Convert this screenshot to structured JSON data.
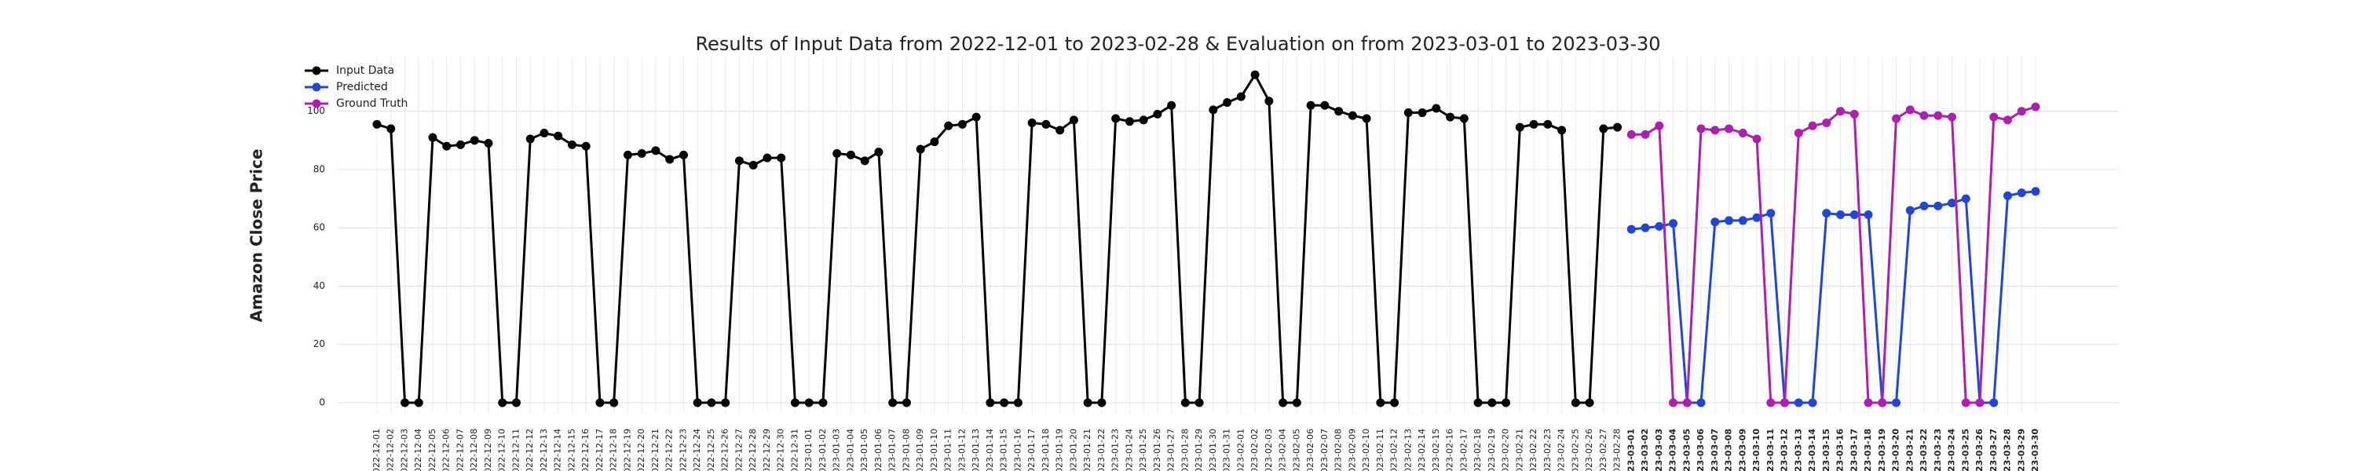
{
  "chart_data": {
    "type": "line",
    "title": "Results of Input Data from 2022-12-01 to 2023-02-28 & Evaluation on from 2023-03-01 to 2023-03-30",
    "ylabel": "Amazon Close Price",
    "categories": [
      "2022-12-01",
      "2022-12-02",
      "2022-12-03",
      "2022-12-04",
      "2022-12-05",
      "2022-12-06",
      "2022-12-07",
      "2022-12-08",
      "2022-12-09",
      "2022-12-10",
      "2022-12-11",
      "2022-12-12",
      "2022-12-13",
      "2022-12-14",
      "2022-12-15",
      "2022-12-16",
      "2022-12-17",
      "2022-12-18",
      "2022-12-19",
      "2022-12-20",
      "2022-12-21",
      "2022-12-22",
      "2022-12-23",
      "2022-12-24",
      "2022-12-25",
      "2022-12-26",
      "2022-12-27",
      "2022-12-28",
      "2022-12-29",
      "2022-12-30",
      "2022-12-31",
      "2023-01-01",
      "2023-01-02",
      "2023-01-03",
      "2023-01-04",
      "2023-01-05",
      "2023-01-06",
      "2023-01-07",
      "2023-01-08",
      "2023-01-09",
      "2023-01-10",
      "2023-01-11",
      "2023-01-12",
      "2023-01-13",
      "2023-01-14",
      "2023-01-15",
      "2023-01-16",
      "2023-01-17",
      "2023-01-18",
      "2023-01-19",
      "2023-01-20",
      "2023-01-21",
      "2023-01-22",
      "2023-01-23",
      "2023-01-24",
      "2023-01-25",
      "2023-01-26",
      "2023-01-27",
      "2023-01-28",
      "2023-01-29",
      "2023-01-30",
      "2023-01-31",
      "2023-02-01",
      "2023-02-02",
      "2023-02-03",
      "2023-02-04",
      "2023-02-05",
      "2023-02-06",
      "2023-02-07",
      "2023-02-08",
      "2023-02-09",
      "2023-02-10",
      "2023-02-11",
      "2023-02-12",
      "2023-02-13",
      "2023-02-14",
      "2023-02-15",
      "2023-02-16",
      "2023-02-17",
      "2023-02-18",
      "2023-02-19",
      "2023-02-20",
      "2023-02-21",
      "2023-02-22",
      "2023-02-23",
      "2023-02-24",
      "2023-02-25",
      "2023-02-26",
      "2023-02-27",
      "2023-02-28",
      "2023-03-01",
      "2023-03-02",
      "2023-03-03",
      "2023-03-04",
      "2023-03-05",
      "2023-03-06",
      "2023-03-07",
      "2023-03-08",
      "2023-03-09",
      "2023-03-10",
      "2023-03-11",
      "2023-03-12",
      "2023-03-13",
      "2023-03-14",
      "2023-03-15",
      "2023-03-16",
      "2023-03-17",
      "2023-03-18",
      "2023-03-19",
      "2023-03-20",
      "2023-03-21",
      "2023-03-22",
      "2023-03-23",
      "2023-03-24",
      "2023-03-25",
      "2023-03-26",
      "2023-03-27",
      "2023-03-28",
      "2023-03-29",
      "2023-03-30"
    ],
    "series": [
      {
        "name": "Input Data",
        "color": "#000000",
        "values": [
          95.5,
          94,
          0,
          0,
          91,
          88,
          88.5,
          90,
          89,
          0,
          0,
          90.5,
          92.5,
          91.5,
          88.5,
          88,
          0,
          0,
          85,
          85.5,
          86.5,
          83.5,
          85,
          0,
          0,
          0,
          83,
          81.5,
          84,
          84,
          0,
          0,
          0,
          85.5,
          85,
          83,
          86,
          0,
          0,
          87,
          89.5,
          95,
          95.5,
          98,
          0,
          0,
          0,
          96,
          95.5,
          93.5,
          97,
          0,
          0,
          97.5,
          96.5,
          97,
          99,
          102,
          0,
          0,
          100.5,
          103,
          105,
          112.5,
          103.5,
          0,
          0,
          102,
          102,
          100,
          98.5,
          97.5,
          0,
          0,
          99.5,
          99.5,
          101,
          98,
          97.5,
          0,
          0,
          0,
          94.5,
          95.5,
          95.5,
          93.5,
          0,
          0,
          94,
          94.5,
          null,
          null,
          null,
          null,
          null,
          null,
          null,
          null,
          null,
          null,
          null,
          null,
          null,
          null,
          null,
          null,
          null,
          null,
          null,
          null,
          null,
          null,
          null,
          null,
          null,
          null,
          null,
          null,
          null,
          null
        ]
      },
      {
        "name": "Predicted",
        "color": "#1f44e0",
        "values": [
          null,
          null,
          null,
          null,
          null,
          null,
          null,
          null,
          null,
          null,
          null,
          null,
          null,
          null,
          null,
          null,
          null,
          null,
          null,
          null,
          null,
          null,
          null,
          null,
          null,
          null,
          null,
          null,
          null,
          null,
          null,
          null,
          null,
          null,
          null,
          null,
          null,
          null,
          null,
          null,
          null,
          null,
          null,
          null,
          null,
          null,
          null,
          null,
          null,
          null,
          null,
          null,
          null,
          null,
          null,
          null,
          null,
          null,
          null,
          null,
          null,
          null,
          null,
          null,
          null,
          null,
          null,
          null,
          null,
          null,
          null,
          null,
          null,
          null,
          null,
          null,
          null,
          null,
          null,
          null,
          null,
          null,
          null,
          null,
          null,
          null,
          null,
          null,
          null,
          null,
          59.5,
          60,
          60.5,
          61.5,
          0,
          0,
          62,
          62.5,
          62.5,
          63.5,
          65,
          0,
          0,
          0,
          65,
          64.5,
          64.5,
          64.5,
          0,
          0,
          66,
          67.5,
          67.5,
          68.5,
          70,
          0,
          0,
          71,
          72,
          72.5
        ]
      },
      {
        "name": "Ground Truth",
        "color": "#b21cb5",
        "values": [
          null,
          null,
          null,
          null,
          null,
          null,
          null,
          null,
          null,
          null,
          null,
          null,
          null,
          null,
          null,
          null,
          null,
          null,
          null,
          null,
          null,
          null,
          null,
          null,
          null,
          null,
          null,
          null,
          null,
          null,
          null,
          null,
          null,
          null,
          null,
          null,
          null,
          null,
          null,
          null,
          null,
          null,
          null,
          null,
          null,
          null,
          null,
          null,
          null,
          null,
          null,
          null,
          null,
          null,
          null,
          null,
          null,
          null,
          null,
          null,
          null,
          null,
          null,
          null,
          null,
          null,
          null,
          null,
          null,
          null,
          null,
          null,
          null,
          null,
          null,
          null,
          null,
          null,
          null,
          null,
          null,
          null,
          null,
          null,
          null,
          null,
          null,
          null,
          null,
          null,
          92,
          92,
          95,
          0,
          0,
          94,
          93.5,
          94,
          92.5,
          90.5,
          0,
          0,
          92.5,
          95,
          96,
          100,
          99,
          0,
          0,
          97.5,
          100.5,
          98.5,
          98.5,
          98,
          0,
          0,
          98,
          97,
          100,
          101.5
        ]
      }
    ],
    "ylim": [
      -3.5,
      118.5
    ],
    "yticks": [
      0,
      20,
      40,
      60,
      80,
      100
    ],
    "grid": true,
    "legend": "upper left"
  }
}
